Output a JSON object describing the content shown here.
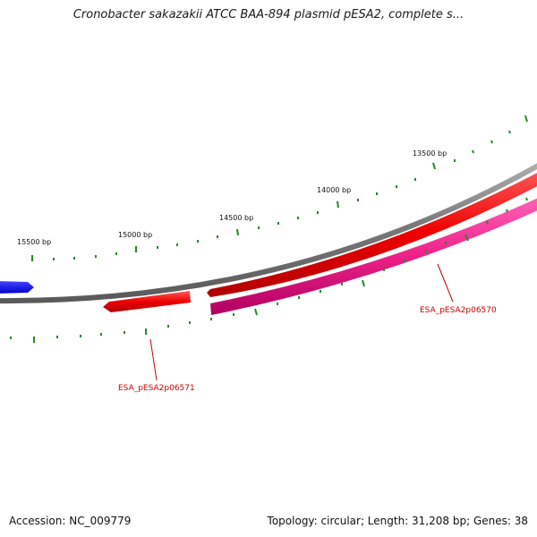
{
  "title": "Cronobacter sakazakii ATCC BAA-894 plasmid pESA2, complete s...",
  "footer": {
    "accession": "Accession: NC_009779",
    "summary": "Topology: circular; Length: 31,208 bp; Genes: 38"
  },
  "ticks": [
    {
      "label": "13500 bp"
    },
    {
      "label": "14000 bp"
    },
    {
      "label": "14500 bp"
    },
    {
      "label": "15000 bp"
    },
    {
      "label": "15500 bp"
    }
  ],
  "genes": [
    {
      "label": "ESA_pESA2p06570"
    },
    {
      "label": "ESA_pESA2p06571"
    }
  ],
  "colors": {
    "backbone": "#808080",
    "cds": "#ff0000",
    "gene": "#ff3399",
    "neighbor_gene": "#0000ff",
    "ticks": "#228b22",
    "gene_label": "#cc0000"
  }
}
